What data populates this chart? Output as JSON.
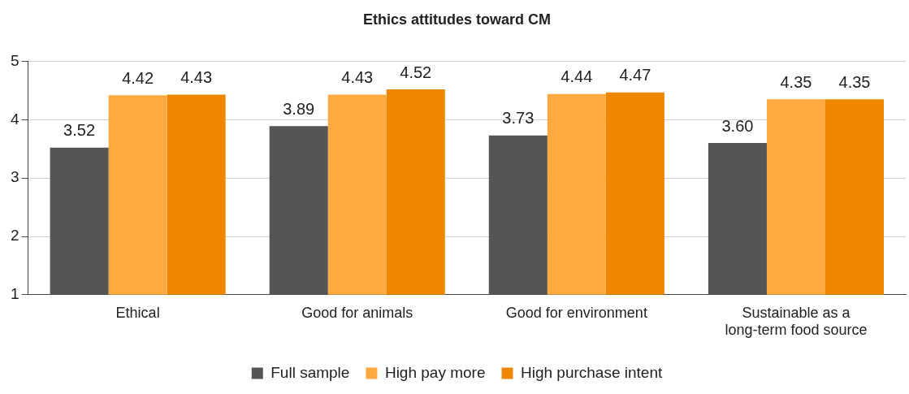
{
  "chart_data": {
    "type": "bar",
    "title": "Ethics attitudes toward CM",
    "categories": [
      "Ethical",
      "Good for animals",
      "Good for environment",
      "Sustainable as a long-term food source"
    ],
    "series": [
      {
        "name": "Full sample",
        "color": "#545554",
        "values": [
          3.52,
          3.89,
          3.73,
          3.6
        ],
        "value_labels": [
          "3.52",
          "3.89",
          "3.73",
          "3.60"
        ]
      },
      {
        "name": "High pay more",
        "color": "#ffa940",
        "values": [
          4.42,
          4.43,
          4.44,
          4.35
        ],
        "value_labels": [
          "4.42",
          "4.43",
          "4.44",
          "4.35"
        ]
      },
      {
        "name": "High purchase intent",
        "color": "#ee8600",
        "values": [
          4.43,
          4.52,
          4.47,
          4.35
        ],
        "value_labels": [
          "4.43",
          "4.52",
          "4.47",
          "4.35"
        ]
      }
    ],
    "ylim": [
      1,
      5
    ],
    "yticks": [
      1,
      2,
      3,
      4,
      5
    ],
    "grid": "y",
    "legend": "bottom"
  }
}
